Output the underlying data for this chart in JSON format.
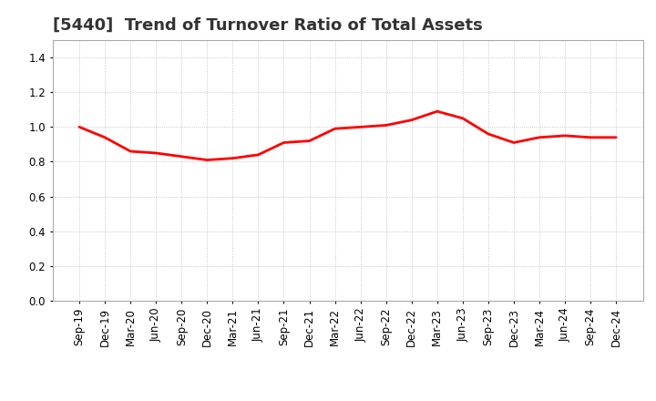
{
  "title": "[5440]  Trend of Turnover Ratio of Total Assets",
  "x_labels": [
    "Sep-19",
    "Dec-19",
    "Mar-20",
    "Jun-20",
    "Sep-20",
    "Dec-20",
    "Mar-21",
    "Jun-21",
    "Sep-21",
    "Dec-21",
    "Mar-22",
    "Jun-22",
    "Sep-22",
    "Dec-22",
    "Mar-23",
    "Jun-23",
    "Sep-23",
    "Dec-23",
    "Mar-24",
    "Jun-24",
    "Sep-24",
    "Dec-24"
  ],
  "y_values": [
    1.0,
    0.94,
    0.86,
    0.85,
    0.83,
    0.81,
    0.82,
    0.84,
    0.91,
    0.92,
    0.99,
    1.0,
    1.01,
    1.04,
    1.09,
    1.05,
    0.96,
    0.91,
    0.94,
    0.95,
    0.94,
    0.94
  ],
  "line_color": "#FF0000",
  "line_width": 2.0,
  "background_color": "#ffffff",
  "plot_bg_color": "#ffffff",
  "grid_color": "#bbbbbb",
  "ylim": [
    0.0,
    1.5
  ],
  "yticks": [
    0.0,
    0.2,
    0.4,
    0.6,
    0.8,
    1.0,
    1.2,
    1.4
  ],
  "title_fontsize": 13,
  "tick_fontsize": 8.5,
  "title_color": "#333333"
}
